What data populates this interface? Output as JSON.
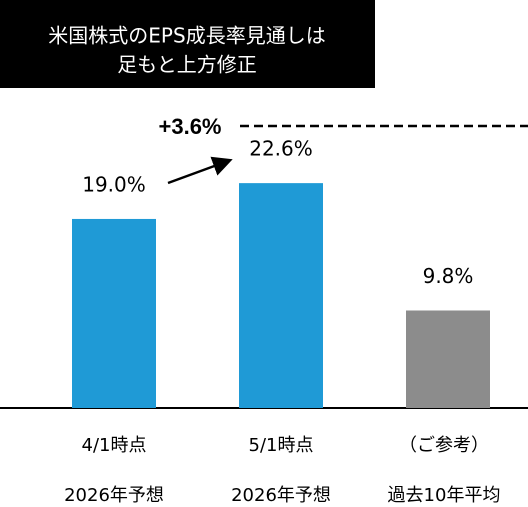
{
  "chart_data": {
    "type": "bar",
    "title": [
      "米国株式のEPS成長率見通しは",
      "足もと上方修正"
    ],
    "categories": [
      [
        "4/1時点",
        "2026年予想"
      ],
      [
        "5/1時点",
        "2026年予想"
      ],
      [
        "（ご参考）",
        "過去10年平均"
      ]
    ],
    "values": [
      19.0,
      22.6,
      9.8
    ],
    "value_labels": [
      "19.0%",
      "22.6%",
      "9.8%"
    ],
    "colors": [
      "#1f9ad6",
      "#1f9ad6",
      "#8c8c8c"
    ],
    "annotation": "+3.6%"
  }
}
